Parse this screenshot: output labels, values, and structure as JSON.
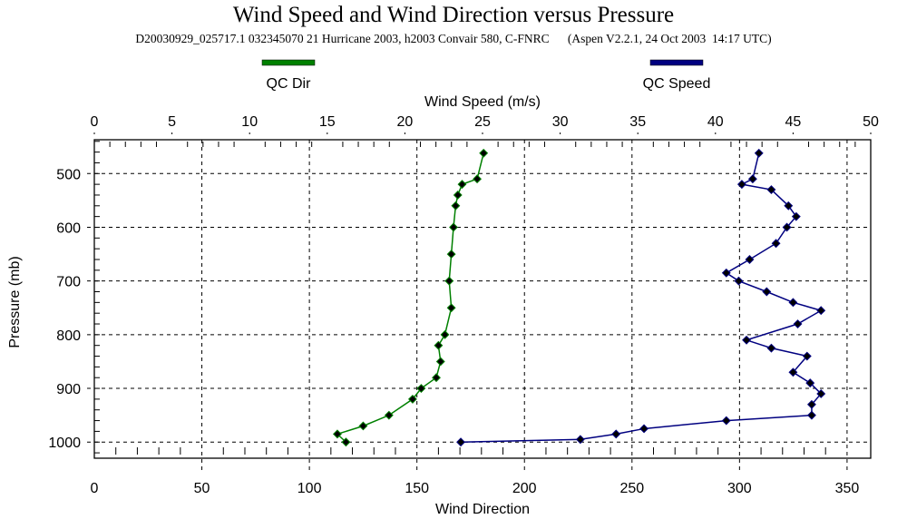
{
  "chart_data": {
    "type": "line",
    "title": "Wind Speed and Wind Direction versus Pressure",
    "subtitle": "D20030929_025717.1 032345070 21 Hurricane 2003, h2003 Convair 580, C-FNRC      (Aspen V2.2.1, 24 Oct 2003  14:17 UTC)",
    "top_xlabel": "Wind Speed (m/s)",
    "bottom_xlabel": "Wind Direction",
    "ylabel": "Pressure (mb)",
    "top_xlim": [
      0,
      50
    ],
    "bottom_xlim": [
      0,
      361
    ],
    "ylim": [
      437,
      1030
    ],
    "y_inverted": true,
    "grid": true,
    "legend_placement": "top",
    "top_ticks": [
      "0",
      "5",
      "10",
      "15",
      "20",
      "25",
      "30",
      "35",
      "40",
      "45",
      "50"
    ],
    "bottom_ticks": [
      "0",
      "50",
      "100",
      "150",
      "200",
      "250",
      "300",
      "350"
    ],
    "y_ticks": [
      "500",
      "600",
      "700",
      "800",
      "900",
      "1000"
    ],
    "series": [
      {
        "name": "QC Dir",
        "axis": "bottom",
        "color": "#008000",
        "pressure": [
          462,
          510,
          520,
          540,
          560,
          600,
          650,
          700,
          750,
          800,
          820,
          850,
          880,
          900,
          920,
          950,
          970,
          985,
          1000
        ],
        "values": [
          181,
          178,
          171,
          169,
          168,
          167,
          166,
          165,
          166,
          163,
          160,
          161,
          159,
          152,
          148,
          137,
          125,
          113,
          117
        ]
      },
      {
        "name": "QC Speed",
        "axis": "top",
        "color": "#000080",
        "pressure": [
          462,
          510,
          520,
          530,
          560,
          580,
          600,
          630,
          660,
          685,
          700,
          720,
          740,
          755,
          780,
          810,
          825,
          840,
          870,
          890,
          910,
          930,
          950,
          960,
          975,
          985,
          995,
          1000
        ],
        "values": [
          42.8,
          42.4,
          41.7,
          43.6,
          44.7,
          45.2,
          44.6,
          43.9,
          42.2,
          40.7,
          41.5,
          43.3,
          45.0,
          46.8,
          45.3,
          42.0,
          43.6,
          45.9,
          45.0,
          46.1,
          46.8,
          46.2,
          46.2,
          40.7,
          35.4,
          33.6,
          31.3,
          23.6
        ]
      }
    ]
  }
}
